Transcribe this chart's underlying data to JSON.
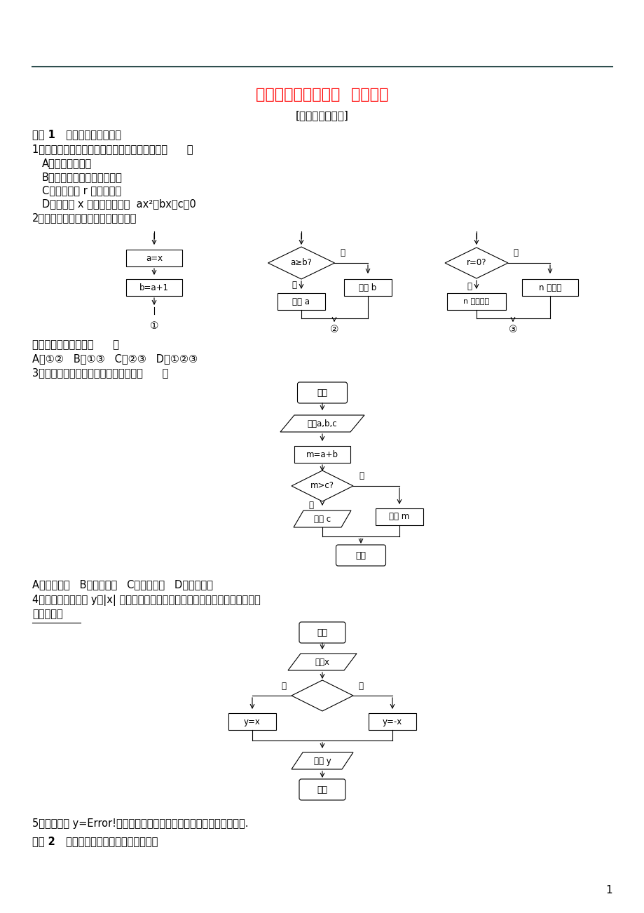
{
  "title": "课下能力提升（三）  条件结构",
  "subtitle": "[学业水平达标练]",
  "title_color": "#FF0000",
  "subtitle_color": "#000000",
  "bg_color": "#FFFFFF",
  "line_color": "#2F4F4F",
  "text_color": "#000000",
  "page_number": "1"
}
